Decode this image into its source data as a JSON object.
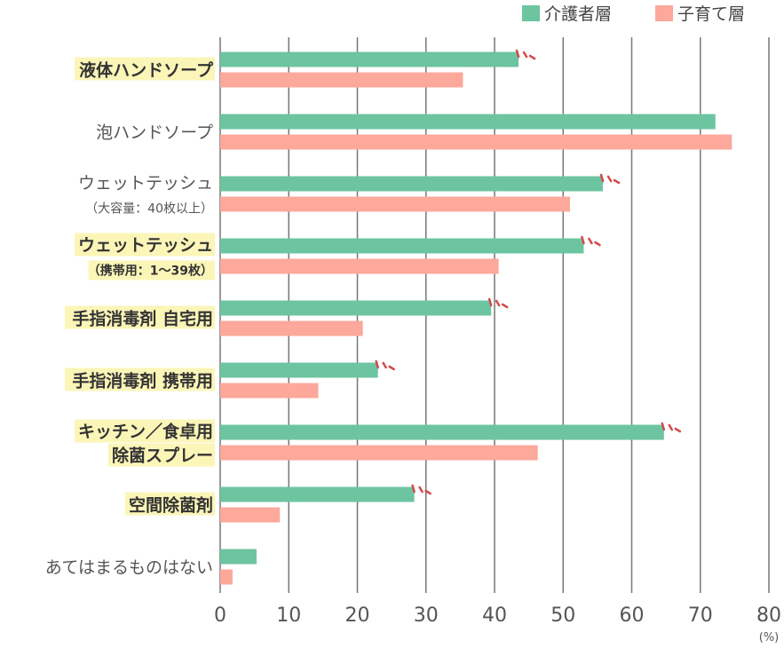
{
  "chart_data": {
    "type": "bar",
    "orientation": "horizontal",
    "unit": "(%)",
    "xlim": [
      0,
      80
    ],
    "x_ticks": [
      "0",
      "10",
      "20",
      "30",
      "40",
      "50",
      "60",
      "70",
      "80"
    ],
    "grid": true,
    "legend_position": "top-right",
    "series": [
      {
        "name": "介護者層",
        "color": "#6cc5a0",
        "values": [
          43.5,
          72.2,
          55.8,
          53.0,
          39.5,
          23.0,
          64.7,
          28.3,
          5.3
        ]
      },
      {
        "name": "子育て層",
        "color": "#fca89b",
        "values": [
          35.4,
          74.6,
          51.0,
          40.6,
          20.8,
          14.3,
          46.3,
          8.7,
          1.8
        ]
      }
    ],
    "categories": [
      {
        "lines": [
          "液体ハンドソープ"
        ],
        "emphasized": true,
        "marked": true
      },
      {
        "lines": [
          "泡ハンドソープ"
        ],
        "emphasized": false,
        "marked": false
      },
      {
        "lines": [
          "ウェットテッシュ",
          "（大容量：40枚以上）"
        ],
        "emphasized": false,
        "marked": true
      },
      {
        "lines": [
          "ウェットテッシュ",
          "（携帯用：1〜39枚）"
        ],
        "emphasized": true,
        "marked": true
      },
      {
        "lines": [
          "手指消毒剤 自宅用"
        ],
        "emphasized": true,
        "marked": true
      },
      {
        "lines": [
          "手指消毒剤 携帯用"
        ],
        "emphasized": true,
        "marked": true
      },
      {
        "lines": [
          "キッチン／食卓用",
          "除菌スプレー"
        ],
        "emphasized": true,
        "marked": true
      },
      {
        "lines": [
          "空間除菌剤"
        ],
        "emphasized": true,
        "marked": true
      },
      {
        "lines": [
          "あてはまるものはない"
        ],
        "emphasized": false,
        "marked": false
      }
    ],
    "colors": {
      "highlight": "#fbf5b8",
      "mark": "#d44a4a",
      "grid": "#777777"
    }
  }
}
